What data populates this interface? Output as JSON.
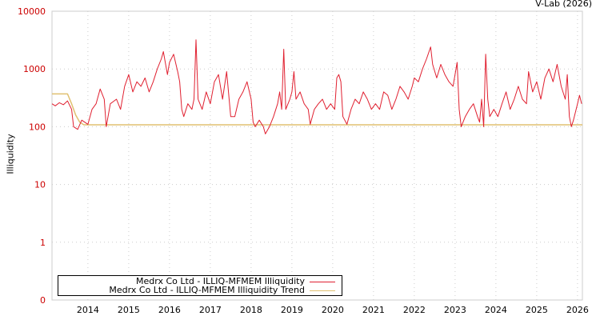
{
  "credit": "V-Lab (2026)",
  "chart_data": {
    "type": "line",
    "title": "",
    "xlabel": "",
    "ylabel": "Illiquidity",
    "yscale": "log",
    "ylim": [
      0.1,
      10000
    ],
    "xlim": [
      2013.12,
      2026.12
    ],
    "y_ticks": [
      10000,
      1000,
      100,
      10,
      1,
      0.1
    ],
    "y_tick_labels": [
      "10000",
      "1000",
      "100",
      "10",
      "1",
      "0"
    ],
    "x_ticks": [
      2014,
      2015,
      2016,
      2017,
      2018,
      2019,
      2020,
      2021,
      2022,
      2023,
      2024,
      2025,
      2026
    ],
    "x_tick_labels": [
      "2014",
      "2015",
      "2016",
      "2017",
      "2018",
      "2019",
      "2020",
      "2021",
      "2022",
      "2023",
      "2024",
      "2025",
      "2026"
    ],
    "grid": true,
    "legend_position": "bottom-left",
    "series": [
      {
        "name": "Medrx Co Ltd - ILLIQ-MFMEM Illiquidity",
        "color": "#e02030",
        "x": [
          2013.12,
          2013.2,
          2013.3,
          2013.4,
          2013.5,
          2013.6,
          2013.65,
          2013.75,
          2013.85,
          2014.0,
          2014.1,
          2014.2,
          2014.3,
          2014.4,
          2014.45,
          2014.55,
          2014.7,
          2014.8,
          2014.9,
          2015.0,
          2015.1,
          2015.2,
          2015.3,
          2015.4,
          2015.5,
          2015.6,
          2015.7,
          2015.8,
          2015.85,
          2015.95,
          2016.0,
          2016.1,
          2016.2,
          2016.25,
          2016.3,
          2016.35,
          2016.45,
          2016.55,
          2016.6,
          2016.65,
          2016.7,
          2016.8,
          2016.9,
          2017.0,
          2017.1,
          2017.2,
          2017.3,
          2017.4,
          2017.5,
          2017.6,
          2017.7,
          2017.8,
          2017.9,
          2018.0,
          2018.05,
          2018.1,
          2018.2,
          2018.3,
          2018.35,
          2018.45,
          2018.55,
          2018.65,
          2018.7,
          2018.75,
          2018.8,
          2018.85,
          2018.95,
          2019.0,
          2019.05,
          2019.1,
          2019.2,
          2019.3,
          2019.4,
          2019.45,
          2019.55,
          2019.65,
          2019.75,
          2019.85,
          2019.95,
          2020.05,
          2020.1,
          2020.15,
          2020.2,
          2020.25,
          2020.35,
          2020.45,
          2020.55,
          2020.65,
          2020.75,
          2020.85,
          2020.95,
          2021.05,
          2021.15,
          2021.25,
          2021.35,
          2021.45,
          2021.55,
          2021.65,
          2021.75,
          2021.85,
          2021.95,
          2022.0,
          2022.1,
          2022.2,
          2022.3,
          2022.4,
          2022.45,
          2022.55,
          2022.65,
          2022.75,
          2022.85,
          2022.95,
          2023.05,
          2023.1,
          2023.15,
          2023.25,
          2023.35,
          2023.45,
          2023.55,
          2023.6,
          2023.65,
          2023.7,
          2023.75,
          2023.8,
          2023.85,
          2023.95,
          2024.05,
          2024.15,
          2024.25,
          2024.35,
          2024.45,
          2024.55,
          2024.65,
          2024.75,
          2024.8,
          2024.9,
          2025.0,
          2025.1,
          2025.2,
          2025.3,
          2025.4,
          2025.5,
          2025.6,
          2025.7,
          2025.75,
          2025.8,
          2025.85,
          2025.9,
          2026.0,
          2026.05,
          2026.1
        ],
        "values": [
          250,
          230,
          260,
          240,
          280,
          200,
          100,
          90,
          130,
          110,
          200,
          250,
          450,
          300,
          100,
          250,
          300,
          200,
          500,
          800,
          400,
          600,
          500,
          700,
          400,
          600,
          1000,
          1500,
          2000,
          800,
          1300,
          1800,
          900,
          600,
          200,
          150,
          250,
          200,
          300,
          3200,
          300,
          200,
          400,
          250,
          600,
          800,
          300,
          900,
          150,
          150,
          300,
          400,
          600,
          300,
          120,
          100,
          130,
          100,
          75,
          100,
          150,
          250,
          400,
          200,
          2200,
          200,
          300,
          400,
          900,
          300,
          400,
          250,
          200,
          110,
          200,
          250,
          300,
          200,
          250,
          200,
          700,
          800,
          600,
          150,
          110,
          200,
          300,
          250,
          400,
          300,
          200,
          250,
          200,
          400,
          350,
          200,
          300,
          500,
          400,
          300,
          500,
          700,
          600,
          1000,
          1500,
          2400,
          1200,
          700,
          1200,
          800,
          600,
          500,
          1300,
          200,
          100,
          150,
          200,
          250,
          150,
          120,
          300,
          100,
          1800,
          300,
          150,
          200,
          150,
          250,
          400,
          200,
          300,
          500,
          300,
          250,
          900,
          400,
          600,
          300,
          700,
          1000,
          600,
          1200,
          500,
          300,
          800,
          150,
          100,
          130,
          250,
          350,
          250
        ]
      },
      {
        "name": "Medrx Co Ltd - ILLIQ-MFMEM Illiquidity Trend",
        "color": "#e0c070",
        "x": [
          2013.12,
          2013.5,
          2013.6,
          2013.7,
          2013.8,
          2013.9,
          2026.12
        ],
        "values": [
          370,
          370,
          250,
          160,
          120,
          108,
          108
        ]
      }
    ]
  }
}
